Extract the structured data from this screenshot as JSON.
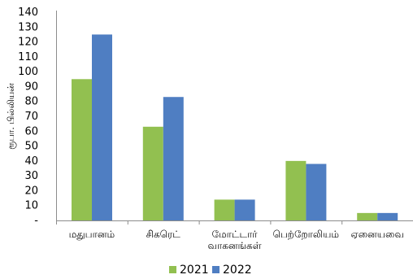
{
  "chart_data": {
    "type": "bar",
    "ylabel": "ரூபா. பில்லியன்",
    "xlabel": "",
    "categories": [
      [
        "மதுபானம்"
      ],
      [
        "சிகரெட்"
      ],
      [
        "மோட்டார்",
        "வாகனங்கள்"
      ],
      [
        "பெற்றோலியம்"
      ],
      [
        "ஏனையவை"
      ]
    ],
    "series": [
      {
        "name": "2021",
        "color": "#92c050",
        "values": [
          95,
          63,
          14,
          40,
          5
        ]
      },
      {
        "name": "2022",
        "color": "#4f7ec2",
        "values": [
          125,
          83,
          14,
          38,
          5
        ]
      }
    ],
    "ylim": [
      0,
      140
    ],
    "yticks": [
      "-",
      "10",
      "20",
      "30",
      "40",
      "50",
      "60",
      "70",
      "80",
      "90",
      "100",
      "110",
      "120",
      "130",
      "140"
    ],
    "grid": false,
    "legend_position": "bottom"
  }
}
